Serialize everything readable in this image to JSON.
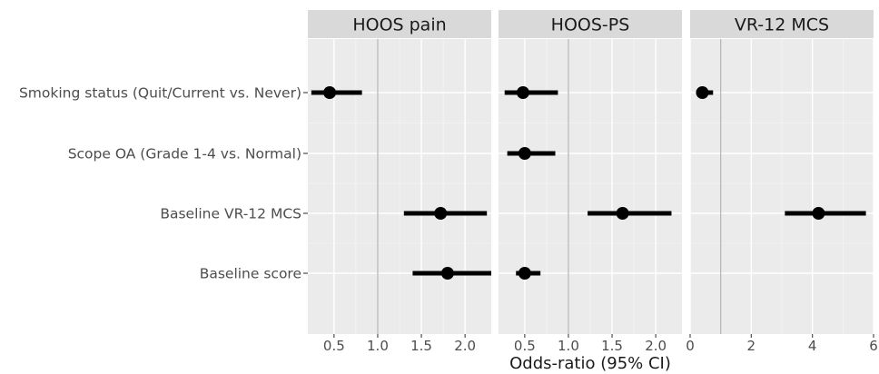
{
  "chart_data": {
    "type": "scatter",
    "subtype": "forest-plot",
    "xlabel": "Odds-ratio (95% CI)",
    "ylabel": "",
    "categories": [
      "Smoking status (Quit/Current vs. Never)",
      "Scope OA (Grade 1-4 vs. Normal)",
      "Baseline VR-12 MCS",
      "Baseline score"
    ],
    "grid": true,
    "reference_line": 1,
    "facets": [
      {
        "title": "HOOS pain",
        "xlim": [
          0.2,
          2.3
        ],
        "ticks": [
          0.5,
          1.0,
          1.5,
          2.0
        ],
        "tick_labels": [
          "0.5",
          "1.0",
          "1.5",
          "2.0"
        ],
        "points": [
          {
            "category": "Smoking status (Quit/Current vs. Never)",
            "estimate": 0.45,
            "lower": 0.24,
            "upper": 0.82
          },
          {
            "category": "Baseline VR-12 MCS",
            "estimate": 1.72,
            "lower": 1.3,
            "upper": 2.25
          },
          {
            "category": "Baseline score",
            "estimate": 1.8,
            "lower": 1.4,
            "upper": 2.3
          }
        ]
      },
      {
        "title": "HOOS-PS",
        "xlim": [
          0.2,
          2.3
        ],
        "ticks": [
          0.5,
          1.0,
          1.5,
          2.0
        ],
        "tick_labels": [
          "0.5",
          "1.0",
          "1.5",
          "2.0"
        ],
        "points": [
          {
            "category": "Smoking status (Quit/Current vs. Never)",
            "estimate": 0.48,
            "lower": 0.27,
            "upper": 0.88
          },
          {
            "category": "Scope OA (Grade 1-4 vs. Normal)",
            "estimate": 0.5,
            "lower": 0.3,
            "upper": 0.85
          },
          {
            "category": "Baseline VR-12 MCS",
            "estimate": 1.62,
            "lower": 1.22,
            "upper": 2.18
          },
          {
            "category": "Baseline score",
            "estimate": 0.5,
            "lower": 0.4,
            "upper": 0.68
          }
        ]
      },
      {
        "title": "VR-12 MCS",
        "xlim": [
          0,
          6
        ],
        "ticks": [
          0,
          2,
          4,
          6
        ],
        "tick_labels": [
          "0",
          "2",
          "4",
          "6"
        ],
        "points": [
          {
            "category": "Smoking status (Quit/Current vs. Never)",
            "estimate": 0.4,
            "lower": 0.3,
            "upper": 0.75
          },
          {
            "category": "Baseline VR-12 MCS",
            "estimate": 4.2,
            "lower": 3.1,
            "upper": 5.75
          }
        ]
      }
    ],
    "colors": {
      "panel_bg": "#ebebeb",
      "strip_bg": "#d9d9d9",
      "grid_major": "#ffffff",
      "grid_minor": "#f5f5f5",
      "reference_line": "#b3b3b3",
      "mark": "#000000"
    }
  }
}
